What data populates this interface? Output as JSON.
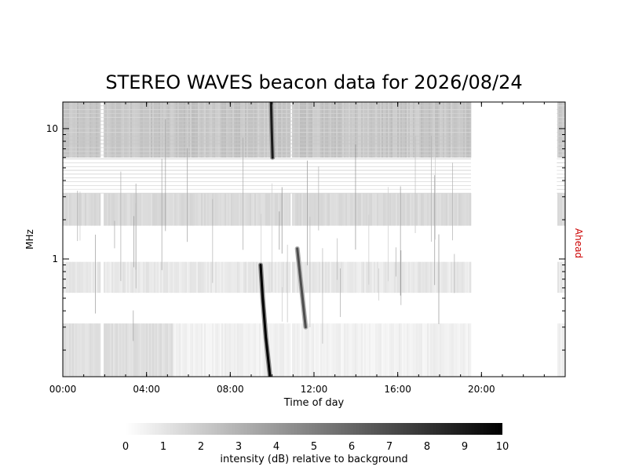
{
  "chart_data": {
    "type": "heatmap",
    "title": "STEREO WAVES beacon data for 2026/08/24",
    "xlabel": "Time of day",
    "ylabel": "MHz",
    "side_label": "Ahead",
    "side_label_color": "#cc0000",
    "x_unit": "hours",
    "xlim": [
      0,
      24
    ],
    "x_ticks": [
      {
        "value": 0,
        "label": "00:00"
      },
      {
        "value": 4,
        "label": "04:00"
      },
      {
        "value": 8,
        "label": "08:00"
      },
      {
        "value": 12,
        "label": "12:00"
      },
      {
        "value": 16,
        "label": "16:00"
      },
      {
        "value": 20,
        "label": "20:00"
      }
    ],
    "y_scale": "log",
    "ylim": [
      0.125,
      16
    ],
    "y_ticks": [
      {
        "value": 1,
        "label": "1"
      },
      {
        "value": 10,
        "label": "10"
      }
    ],
    "data_coverage": [
      [
        0,
        19.5
      ],
      [
        23.6,
        24
      ]
    ],
    "data_gaps": [
      [
        1.8,
        1.95
      ],
      [
        10.85,
        10.95
      ]
    ],
    "bursts": [
      {
        "points": [
          [
            9.45,
            0.9
          ],
          [
            9.55,
            0.5
          ],
          [
            9.7,
            0.25
          ],
          [
            9.9,
            0.125
          ]
        ],
        "intensity": 10
      },
      {
        "points": [
          [
            9.95,
            16
          ],
          [
            9.98,
            10
          ],
          [
            10.02,
            6
          ]
        ],
        "intensity": 9
      },
      {
        "points": [
          [
            11.2,
            1.2
          ],
          [
            11.4,
            0.6
          ],
          [
            11.6,
            0.3
          ]
        ],
        "intensity": 7
      }
    ],
    "colorbar": {
      "label": "intensity (dB) relative to background",
      "min": 0,
      "max": 10,
      "ticks": [
        "0",
        "1",
        "2",
        "3",
        "4",
        "5",
        "6",
        "7",
        "8",
        "9",
        "10"
      ],
      "color_low": "#ffffff",
      "color_high": "#000000"
    }
  }
}
